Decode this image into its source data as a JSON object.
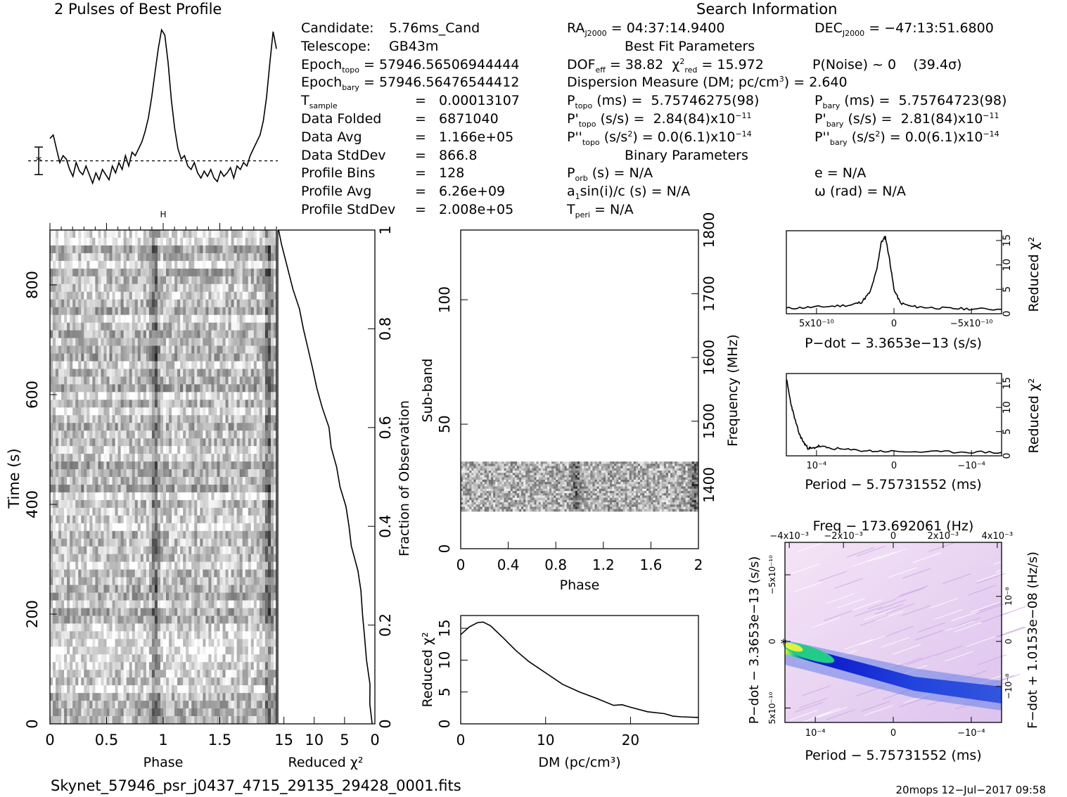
{
  "header": {
    "left_title": "2 Pulses of Best Profile",
    "right_title": "Search Information"
  },
  "info": {
    "candidate_label": "Candidate:",
    "candidate": "5.76ms_Cand",
    "telescope_label": "Telescope:",
    "telescope": "GB43m",
    "epoch_topo": "57946.56506944444",
    "epoch_bary": "57946.56476544412",
    "t_sample": "0.00013107",
    "data_folded": "6871040",
    "data_avg": "1.166e+05",
    "data_stddev": "866.8",
    "profile_bins": "128",
    "profile_avg": "6.26e+09",
    "profile_stddev": "2.008e+05",
    "ra": "04:37:14.9400",
    "dec": "−47:13:51.6800",
    "best_fit_title": "Best Fit Parameters",
    "dof_eff": "38.82",
    "chi2_red": "15.972",
    "p_noise": "P(Noise) ~ 0    (39.4σ)",
    "dm_line_value": "2.640",
    "p_topo": "5.75746275(98)",
    "p_bary": "5.75764723(98)",
    "pd_topo": "2.84(84)x10",
    "pd_topo_exp": "−11",
    "pd_bary": "2.81(84)x10",
    "pd_bary_exp": "−11",
    "pdd_topo": "0.0(6.1)x10",
    "pdd_topo_exp": "−14",
    "pdd_bary": "0.0(6.1)x10",
    "pdd_bary_exp": "−14",
    "binary_title": "Binary Parameters",
    "p_orb": "N/A",
    "e": "N/A",
    "a1sini": "N/A",
    "omega": "N/A",
    "t_peri": "N/A"
  },
  "footer": {
    "filename": "Skynet_57946_psr_j0437_4715_29135_29428_0001.fits",
    "stamp": "20mops  12−Jul−2017 09:58"
  },
  "colors": {
    "ink": "#000000",
    "diagnostic_cmap": [
      "#f3e0f4",
      "#d8b8ea",
      "#3355dd",
      "#0a14c8",
      "#22cc88",
      "#e0f040"
    ]
  },
  "chart_data": [
    {
      "id": "profile",
      "type": "line",
      "title": "2 Pulses of Best Profile",
      "xlim": [
        0,
        2
      ],
      "values": [
        0.36,
        0.38,
        0.3,
        0.22,
        0.26,
        0.24,
        0.18,
        0.14,
        0.22,
        0.17,
        0.15,
        0.2,
        0.15,
        0.1,
        0.16,
        0.12,
        0.18,
        0.15,
        0.12,
        0.2,
        0.16,
        0.22,
        0.18,
        0.26,
        0.2,
        0.28,
        0.26,
        0.3,
        0.34,
        0.4,
        0.48,
        0.6,
        0.74,
        0.88,
        0.99,
        0.96,
        0.8,
        0.58,
        0.42,
        0.3,
        0.24,
        0.26,
        0.2,
        0.18,
        0.22,
        0.16,
        0.13,
        0.17,
        0.14,
        0.18,
        0.13,
        0.11,
        0.17,
        0.14,
        0.16,
        0.19,
        0.13,
        0.2,
        0.18,
        0.22,
        0.2,
        0.26,
        0.3,
        0.34,
        0.38,
        0.46,
        0.6,
        0.8,
        0.98,
        0.88
      ],
      "baseline": 0.23,
      "errorbar": [
        0.15,
        0.31
      ]
    },
    {
      "id": "time_phase",
      "type": "heatmap",
      "xlabel": "Phase",
      "ylabel": "Time (s)",
      "xlim": [
        0,
        2
      ],
      "ylim": [
        0,
        900
      ],
      "xticks": [
        "0",
        "0.5",
        "1",
        "1.5"
      ],
      "yticks": [
        "0",
        "200",
        "400",
        "600",
        "800"
      ],
      "pulse_phase": [
        0.93,
        1.93
      ]
    },
    {
      "id": "time_chi2",
      "type": "line",
      "xlabel": "Reduced χ²",
      "ylabel": "Fraction of Observation",
      "xlim": [
        16,
        0
      ],
      "ylim": [
        0,
        1
      ],
      "xticks": [
        "15",
        "10",
        "5",
        "0"
      ],
      "yticks": [
        "0",
        "0.2",
        "0.4",
        "0.6",
        "0.8",
        "1"
      ],
      "x": [
        0.5,
        0.6,
        0.8,
        1.2,
        1.7,
        2.1,
        2.6,
        3.0,
        3.6,
        4.3,
        5.0,
        5.6,
        6.3,
        7.0,
        7.8,
        8.6,
        9.4,
        10.3,
        11.2,
        11.9,
        12.6,
        13.4,
        14.3,
        15.2,
        15.9
      ],
      "y": [
        0.0,
        0.04,
        0.08,
        0.13,
        0.18,
        0.22,
        0.27,
        0.31,
        0.36,
        0.4,
        0.44,
        0.48,
        0.52,
        0.56,
        0.6,
        0.64,
        0.68,
        0.72,
        0.76,
        0.8,
        0.84,
        0.88,
        0.93,
        0.97,
        1.0
      ]
    },
    {
      "id": "subband_phase",
      "type": "heatmap",
      "xlabel": "Phase",
      "ylabel": "Sub-band",
      "y2label": "Frequency (MHz)",
      "xlim": [
        0,
        2
      ],
      "ylim": [
        0,
        128
      ],
      "y2lim": [
        1300,
        1800
      ],
      "xticks": [
        "0",
        "0.4",
        "0.8",
        "1.2",
        "1.6",
        "2"
      ],
      "yticks": [
        "0",
        "50",
        "100"
      ],
      "y2ticks": [
        "1400",
        "1500",
        "1600",
        "1700",
        "1800"
      ],
      "filled_rows": [
        15,
        35
      ]
    },
    {
      "id": "dm_chi2",
      "type": "line",
      "xlabel": "DM (pc/cm³)",
      "ylabel": "Reduced χ²",
      "xlim": [
        0,
        28
      ],
      "ylim": [
        0,
        17
      ],
      "xticks": [
        "0",
        "10",
        "20"
      ],
      "yticks": [
        "0",
        "5",
        "10",
        "15"
      ],
      "x": [
        0,
        1,
        2,
        2.64,
        3.5,
        5,
        6.5,
        8,
        10,
        12,
        14,
        16,
        18,
        19,
        20,
        22,
        24,
        25,
        26,
        28
      ],
      "y": [
        14.0,
        15.2,
        15.9,
        15.97,
        15.4,
        13.5,
        11.5,
        9.8,
        8.0,
        6.2,
        5.0,
        4.0,
        2.9,
        3.0,
        2.6,
        1.9,
        1.6,
        1.2,
        1.1,
        1.0
      ]
    },
    {
      "id": "pdot_chi2",
      "type": "line",
      "xlabel": "P−dot − 3.3653e−13 (s/s)",
      "ylabel": "Reduced χ²",
      "ylim": [
        0,
        17
      ],
      "yticks": [
        "0",
        "5",
        "10",
        "15"
      ],
      "xticks": [
        "5x10⁻¹⁰",
        "0",
        "−5x10⁻¹⁰"
      ],
      "x": [
        0,
        0.1,
        0.2,
        0.3,
        0.35,
        0.39,
        0.42,
        0.44,
        0.46,
        0.48,
        0.5,
        0.53,
        0.58,
        0.65,
        0.75,
        0.85,
        1.0
      ],
      "y": [
        1.1,
        1.3,
        1.5,
        1.8,
        2.4,
        4.5,
        9.0,
        14.5,
        15.8,
        11.0,
        5.0,
        2.2,
        1.5,
        1.3,
        1.1,
        1.0,
        0.9
      ]
    },
    {
      "id": "period_chi2",
      "type": "line",
      "xlabel": "Period − 5.75731552 (ms)",
      "ylabel": "Reduced χ²",
      "ylim": [
        0,
        17
      ],
      "yticks": [
        "0",
        "5",
        "10",
        "15"
      ],
      "xticks": [
        "10⁻⁴",
        "0",
        "−10⁻⁴"
      ],
      "x": [
        0,
        0.02,
        0.04,
        0.06,
        0.08,
        0.1,
        0.12,
        0.15,
        0.2,
        0.3,
        0.4,
        0.5,
        0.7,
        0.85,
        1.0
      ],
      "y": [
        16.0,
        11.0,
        7.5,
        4.5,
        2.8,
        1.6,
        1.5,
        2.0,
        1.6,
        1.2,
        1.0,
        0.9,
        0.8,
        0.8,
        0.7
      ]
    },
    {
      "id": "p_pdot_plane",
      "type": "heatmap",
      "title": "Freq − 173.692061 (Hz)",
      "xlabel": "Period − 5.75731552 (ms)",
      "ylabel": "P−dot − 3.3653e−13 (s/s)",
      "y2label": "F−dot + 1.0153e−08 (Hz/s)",
      "xticks": [
        "10⁻⁴",
        "0",
        "−10⁻⁴"
      ],
      "x2ticks": [
        "−4x10⁻³",
        "−2x10⁻³",
        "0",
        "2x10⁻³",
        "4x10⁻³"
      ],
      "yticks": [
        "−5x10⁻¹⁰",
        "0",
        "5x10⁻¹⁰"
      ],
      "y2ticks": [
        "10⁻⁸",
        "0",
        "−10⁻⁸"
      ]
    }
  ]
}
